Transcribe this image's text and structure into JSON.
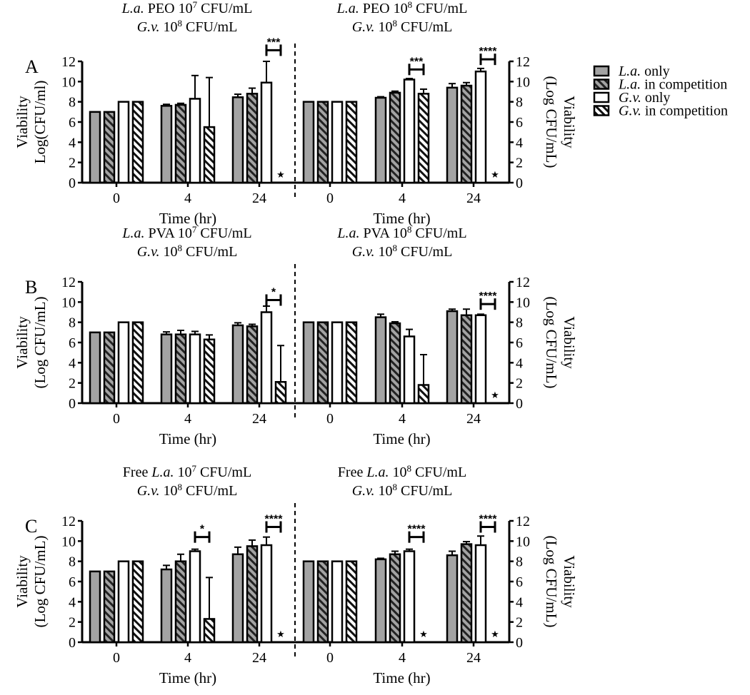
{
  "legend": [
    {
      "species": "L.a.",
      "text": " only",
      "fill": "solid-gray"
    },
    {
      "species": "L.a.",
      "text": " in competition",
      "fill": "hatch-gray"
    },
    {
      "species": "G.v.",
      "text": " only",
      "fill": "white"
    },
    {
      "species": "G.v.",
      "text": " in competition",
      "fill": "hatch-white"
    }
  ],
  "colors": {
    "gray": "#a3a3a3",
    "black": "#000000",
    "white": "#ffffff"
  },
  "no_growth_marker": "★",
  "chart_data": [
    {
      "panel": "A",
      "side": "left",
      "type": "bar",
      "title": [
        [
          {
            "t": "L.a.",
            "i": true
          },
          {
            "t": " PEO 10"
          },
          {
            "t": "7",
            "sup": true
          },
          {
            "t": " CFU/mL"
          }
        ],
        [
          {
            "t": "G.v.",
            "i": true
          },
          {
            "t": " 10"
          },
          {
            "t": "8",
            "sup": true
          },
          {
            "t": " CFU/mL"
          }
        ]
      ],
      "ylabel": [
        "Viability",
        "Log(CFU/ml)"
      ],
      "xlabel": "Time (hr)",
      "categories": [
        "0",
        "4",
        "24"
      ],
      "ylim": [
        0,
        12
      ],
      "yticks": [
        "0",
        "2",
        "4",
        "6",
        "8",
        "10",
        "12"
      ],
      "series": [
        {
          "name": "L.a. only",
          "values": [
            7,
            7.6,
            8.45
          ],
          "errors": [
            0,
            0.15,
            0.3
          ]
        },
        {
          "name": "L.a. in competition",
          "values": [
            7,
            7.7,
            8.8
          ],
          "errors": [
            0,
            0.15,
            0.55
          ]
        },
        {
          "name": "G.v. only",
          "values": [
            8,
            8.3,
            9.9
          ],
          "errors": [
            0,
            2.3,
            2.1
          ]
        },
        {
          "name": "G.v. in competition",
          "values": [
            8,
            5.5,
            0
          ],
          "errors": [
            0,
            4.9,
            0
          ]
        }
      ],
      "no_growth": [
        false,
        false,
        true
      ],
      "significance": [
        {
          "category": "24",
          "label": "***",
          "level": 13.1
        }
      ]
    },
    {
      "panel": "A",
      "side": "right",
      "type": "bar",
      "title": [
        [
          {
            "t": "L.a.",
            "i": true
          },
          {
            "t": " PEO 10"
          },
          {
            "t": "8",
            "sup": true
          },
          {
            "t": " CFU/mL"
          }
        ],
        [
          {
            "t": "G.v.",
            "i": true
          },
          {
            "t": " 10"
          },
          {
            "t": "8",
            "sup": true
          },
          {
            "t": " CFU/mL"
          }
        ]
      ],
      "ylabel": [
        "Viability",
        "(Log CFU/mL)"
      ],
      "xlabel": "Time (hr)",
      "categories": [
        "0",
        "4",
        "24"
      ],
      "ylim": [
        0,
        12
      ],
      "yticks": [
        "0",
        "2",
        "4",
        "6",
        "8",
        "10",
        "12"
      ],
      "series": [
        {
          "name": "L.a. only",
          "values": [
            8,
            8.4,
            9.4
          ],
          "errors": [
            0,
            0.1,
            0.4
          ]
        },
        {
          "name": "L.a. in competition",
          "values": [
            8,
            8.9,
            9.6
          ],
          "errors": [
            0,
            0.15,
            0.3
          ]
        },
        {
          "name": "G.v. only",
          "values": [
            8,
            10.2,
            11.0
          ],
          "errors": [
            0,
            0.1,
            0.3
          ]
        },
        {
          "name": "G.v. in competition",
          "values": [
            8,
            8.8,
            0
          ],
          "errors": [
            0,
            0.45,
            0
          ]
        }
      ],
      "no_growth": [
        false,
        false,
        true
      ],
      "significance": [
        {
          "category": "4",
          "label": "***",
          "level": 11.2
        },
        {
          "category": "24",
          "label": "****",
          "level": 12.2
        }
      ]
    },
    {
      "panel": "B",
      "side": "left",
      "type": "bar",
      "title": [
        [
          {
            "t": "L.a.",
            "i": true
          },
          {
            "t": " PVA 10"
          },
          {
            "t": "7",
            "sup": true
          },
          {
            "t": " CFU/mL"
          }
        ],
        [
          {
            "t": "G.v.",
            "i": true
          },
          {
            "t": " 10"
          },
          {
            "t": "8",
            "sup": true
          },
          {
            "t": " CFU/mL"
          }
        ]
      ],
      "ylabel": [
        "Viability",
        "(Log CFU/mL)"
      ],
      "xlabel": "Time (hr)",
      "categories": [
        "0",
        "4",
        "24"
      ],
      "ylim": [
        0,
        12
      ],
      "yticks": [
        "0",
        "2",
        "4",
        "6",
        "8",
        "10",
        "12"
      ],
      "series": [
        {
          "name": "L.a. only",
          "values": [
            7,
            6.8,
            7.7
          ],
          "errors": [
            0,
            0.25,
            0.25
          ]
        },
        {
          "name": "L.a. in competition",
          "values": [
            7,
            6.8,
            7.6
          ],
          "errors": [
            0,
            0.4,
            0.2
          ]
        },
        {
          "name": "G.v. only",
          "values": [
            8,
            6.8,
            9.0
          ],
          "errors": [
            0,
            0.3,
            0.6
          ]
        },
        {
          "name": "G.v. in competition",
          "values": [
            8,
            6.3,
            2.1
          ],
          "errors": [
            0,
            0.45,
            3.6
          ]
        }
      ],
      "no_growth": [
        false,
        false,
        false
      ],
      "significance": [
        {
          "category": "24",
          "label": "*",
          "level": 10.2
        }
      ]
    },
    {
      "panel": "B",
      "side": "right",
      "type": "bar",
      "title": [
        [
          {
            "t": "L.a.",
            "i": true
          },
          {
            "t": " PVA 10"
          },
          {
            "t": "8",
            "sup": true
          },
          {
            "t": " CFU/mL"
          }
        ],
        [
          {
            "t": "G.v.",
            "i": true
          },
          {
            "t": " 10"
          },
          {
            "t": "8",
            "sup": true
          },
          {
            "t": " CFU/mL"
          }
        ]
      ],
      "ylabel": [
        "Viability",
        "(Log CFU/mL)"
      ],
      "xlabel": "Time (hr)",
      "categories": [
        "0",
        "4",
        "24"
      ],
      "ylim": [
        0,
        12
      ],
      "yticks": [
        "0",
        "2",
        "4",
        "6",
        "8",
        "10",
        "12"
      ],
      "series": [
        {
          "name": "L.a. only",
          "values": [
            8,
            8.5,
            9.1
          ],
          "errors": [
            0,
            0.3,
            0.2
          ]
        },
        {
          "name": "L.a. in competition",
          "values": [
            8,
            7.9,
            8.7
          ],
          "errors": [
            0,
            0.15,
            0.6
          ]
        },
        {
          "name": "G.v. only",
          "values": [
            8,
            6.6,
            8.7
          ],
          "errors": [
            0,
            0.7,
            0.1
          ]
        },
        {
          "name": "G.v. in competition",
          "values": [
            8,
            1.8,
            0
          ],
          "errors": [
            0,
            3.0,
            0
          ]
        }
      ],
      "no_growth": [
        false,
        false,
        true
      ],
      "significance": [
        {
          "category": "24",
          "label": "****",
          "level": 9.8
        }
      ]
    },
    {
      "panel": "C",
      "side": "left",
      "type": "bar",
      "title": [
        [
          {
            "t": "Free "
          },
          {
            "t": "L.a.",
            "i": true
          },
          {
            "t": " 10"
          },
          {
            "t": "7",
            "sup": true
          },
          {
            "t": " CFU/mL"
          }
        ],
        [
          {
            "t": "G.v.",
            "i": true
          },
          {
            "t": " 10"
          },
          {
            "t": "8",
            "sup": true
          },
          {
            "t": " CFU/mL"
          }
        ]
      ],
      "ylabel": [
        "Viability",
        "(Log CFU/mL)"
      ],
      "xlabel": "Time (hr)",
      "categories": [
        "0",
        "4",
        "24"
      ],
      "ylim": [
        0,
        12
      ],
      "yticks": [
        "0",
        "2",
        "4",
        "6",
        "8",
        "10",
        "12"
      ],
      "series": [
        {
          "name": "L.a. only",
          "values": [
            7,
            7.2,
            8.7
          ],
          "errors": [
            0,
            0.4,
            0.7
          ]
        },
        {
          "name": "L.a. in competition",
          "values": [
            7,
            8.0,
            9.5
          ],
          "errors": [
            0,
            0.7,
            0.6
          ]
        },
        {
          "name": "G.v. only",
          "values": [
            8,
            9.0,
            9.6
          ],
          "errors": [
            0,
            0.2,
            0.8
          ]
        },
        {
          "name": "G.v. in competition",
          "values": [
            8,
            2.3,
            0
          ],
          "errors": [
            0,
            4.1,
            0
          ]
        }
      ],
      "no_growth": [
        false,
        false,
        true
      ],
      "significance": [
        {
          "category": "4",
          "label": "*",
          "level": 10.4
        },
        {
          "category": "24",
          "label": "****",
          "level": 11.4
        }
      ]
    },
    {
      "panel": "C",
      "side": "right",
      "type": "bar",
      "title": [
        [
          {
            "t": "Free "
          },
          {
            "t": "L.a.",
            "i": true
          },
          {
            "t": " 10"
          },
          {
            "t": "8",
            "sup": true
          },
          {
            "t": "  CFU/mL"
          }
        ],
        [
          {
            "t": "G.v.",
            "i": true
          },
          {
            "t": " 10"
          },
          {
            "t": "8",
            "sup": true
          },
          {
            "t": " CFU/mL"
          }
        ]
      ],
      "ylabel": [
        "Viability",
        "(Log CFU/mL)"
      ],
      "xlabel": "Time (hr)",
      "categories": [
        "0",
        "4",
        "24"
      ],
      "ylim": [
        0,
        12
      ],
      "yticks": [
        "0",
        "2",
        "4",
        "6",
        "8",
        "10",
        "12"
      ],
      "series": [
        {
          "name": "L.a. only",
          "values": [
            8,
            8.2,
            8.6
          ],
          "errors": [
            0,
            0.1,
            0.4
          ]
        },
        {
          "name": "L.a. in competition",
          "values": [
            8,
            8.7,
            9.7
          ],
          "errors": [
            0,
            0.3,
            0.25
          ]
        },
        {
          "name": "G.v. only",
          "values": [
            8,
            9.0,
            9.6
          ],
          "errors": [
            0,
            0.2,
            0.9
          ]
        },
        {
          "name": "G.v. in competition",
          "values": [
            8,
            0,
            0
          ],
          "errors": [
            0,
            0,
            0
          ]
        }
      ],
      "no_growth": [
        false,
        true,
        true
      ],
      "significance": [
        {
          "category": "4",
          "label": "****",
          "level": 10.4
        },
        {
          "category": "24",
          "label": "****",
          "level": 11.4
        }
      ]
    }
  ]
}
